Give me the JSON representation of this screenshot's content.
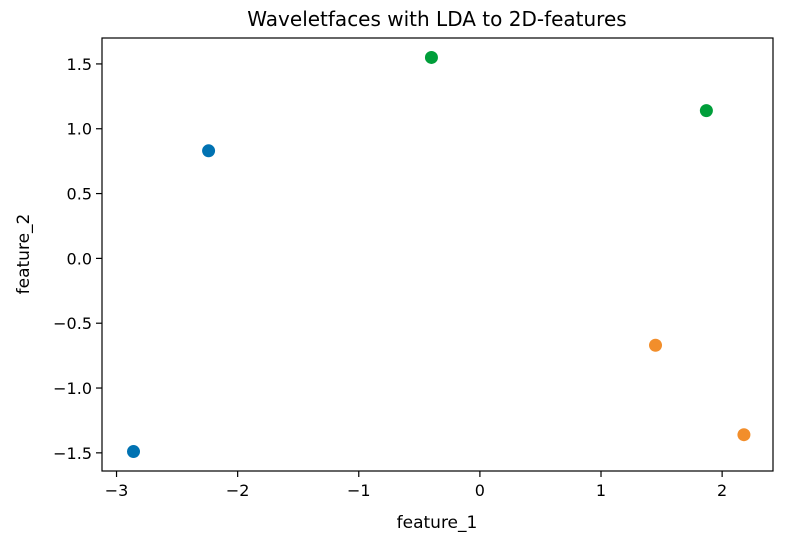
{
  "chart_data": {
    "type": "scatter",
    "title": "Waveletfaces with LDA to 2D-features",
    "xlabel": "feature_1",
    "ylabel": "feature_2",
    "xlim": [
      -3.12,
      2.42
    ],
    "ylim": [
      -1.64,
      1.7
    ],
    "xticks": [
      -3,
      -2,
      -1,
      0,
      1,
      2
    ],
    "yticks": [
      -1.5,
      -1.0,
      -0.5,
      0.0,
      0.5,
      1.0,
      1.5
    ],
    "grid": false,
    "legend": "none",
    "series": [
      {
        "color": "#0072b2",
        "points": [
          [
            -2.86,
            -1.49
          ],
          [
            -2.24,
            0.83
          ]
        ]
      },
      {
        "color": "#f28e2b",
        "points": [
          [
            1.45,
            -0.67
          ],
          [
            2.18,
            -1.36
          ]
        ]
      },
      {
        "color": "#009e3a",
        "points": [
          [
            -0.4,
            1.55
          ],
          [
            1.87,
            1.14
          ]
        ]
      }
    ]
  }
}
